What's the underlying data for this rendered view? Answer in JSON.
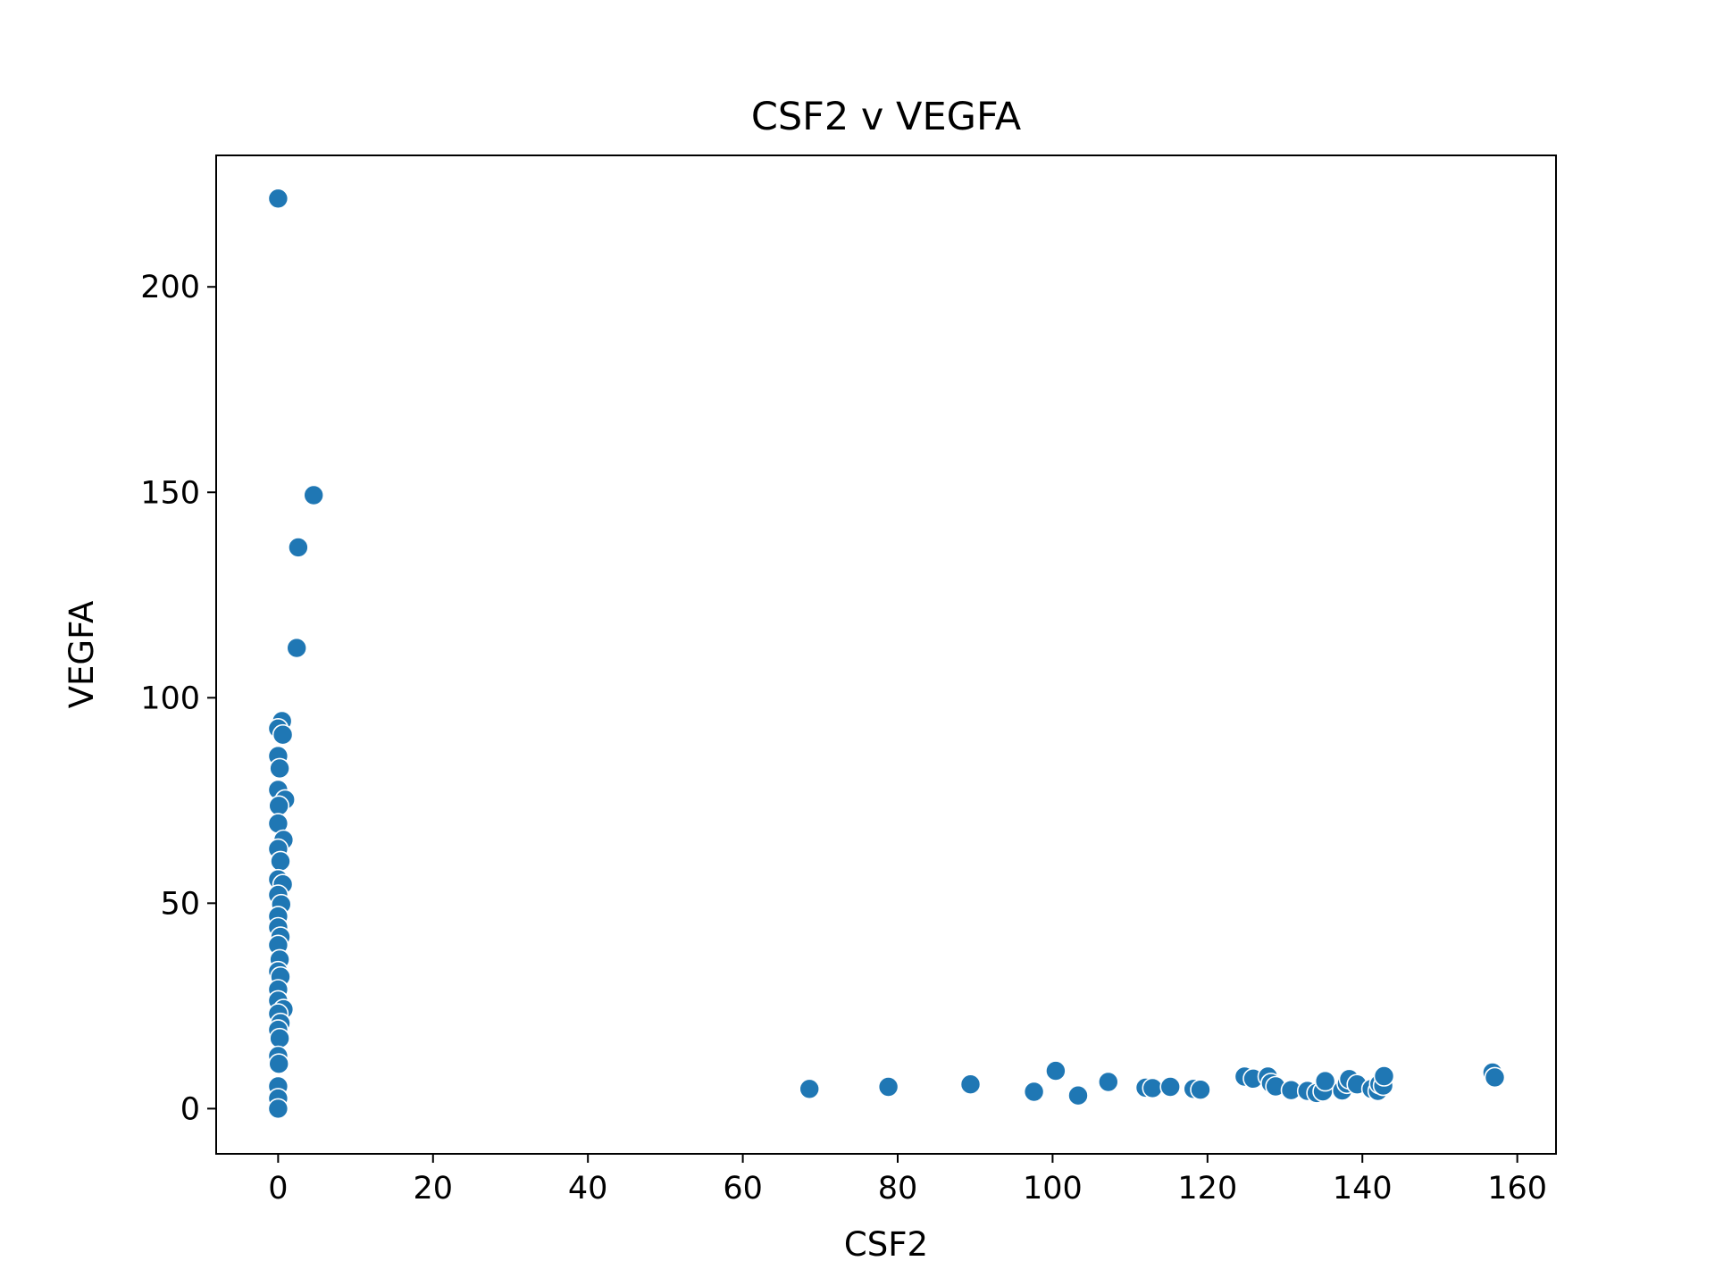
{
  "chart_data": {
    "type": "scatter",
    "title": "CSF2 v VEGFA",
    "xlabel": "CSF2",
    "ylabel": "VEGFA",
    "xlim": [
      -8,
      165
    ],
    "ylim": [
      -11,
      232
    ],
    "xticks": [
      0,
      20,
      40,
      60,
      80,
      100,
      120,
      140,
      160
    ],
    "yticks": [
      0,
      50,
      100,
      150,
      200
    ],
    "grid": false,
    "legend": "none",
    "marker_color": "#1f77b4",
    "marker_edge_color": "#ffffff",
    "points": [
      [
        0,
        221.5
      ],
      [
        4.6,
        149.3
      ],
      [
        2.6,
        136.6
      ],
      [
        2.4,
        112.1
      ],
      [
        0.5,
        94.3
      ],
      [
        0.0,
        92.5
      ],
      [
        0.6,
        91.0
      ],
      [
        0.0,
        85.8
      ],
      [
        0.2,
        82.8
      ],
      [
        0.0,
        77.6
      ],
      [
        0.9,
        75.2
      ],
      [
        0.1,
        73.7
      ],
      [
        0.0,
        69.4
      ],
      [
        0.7,
        65.4
      ],
      [
        0.0,
        63.2
      ],
      [
        0.3,
        60.2
      ],
      [
        0.0,
        55.8
      ],
      [
        0.6,
        54.6
      ],
      [
        0.0,
        52.0
      ],
      [
        0.4,
        49.7
      ],
      [
        0.0,
        46.8
      ],
      [
        0.0,
        44.1
      ],
      [
        0.3,
        41.8
      ],
      [
        0.0,
        39.8
      ],
      [
        0.2,
        36.3
      ],
      [
        0.0,
        33.4
      ],
      [
        0.3,
        32.1
      ],
      [
        0.0,
        29.0
      ],
      [
        0.0,
        26.3
      ],
      [
        0.7,
        24.2
      ],
      [
        0.0,
        23.1
      ],
      [
        0.3,
        20.8
      ],
      [
        0.0,
        19.2
      ],
      [
        0.2,
        17.1
      ],
      [
        0.0,
        12.8
      ],
      [
        0.1,
        10.9
      ],
      [
        0.0,
        5.4
      ],
      [
        0.0,
        2.5
      ],
      [
        0.0,
        0.0
      ],
      [
        68.6,
        4.8
      ],
      [
        78.8,
        5.3
      ],
      [
        89.4,
        5.9
      ],
      [
        97.6,
        4.1
      ],
      [
        100.4,
        9.2
      ],
      [
        103.3,
        3.2
      ],
      [
        107.2,
        6.5
      ],
      [
        112.0,
        5.1
      ],
      [
        112.9,
        5.0
      ],
      [
        115.2,
        5.3
      ],
      [
        118.2,
        4.8
      ],
      [
        119.1,
        4.6
      ],
      [
        124.8,
        7.8
      ],
      [
        125.9,
        7.3
      ],
      [
        127.8,
        7.8
      ],
      [
        128.2,
        6.2
      ],
      [
        128.8,
        5.4
      ],
      [
        130.8,
        4.5
      ],
      [
        132.9,
        4.3
      ],
      [
        134.1,
        3.8
      ],
      [
        134.9,
        4.2
      ],
      [
        135.2,
        6.7
      ],
      [
        137.4,
        4.4
      ],
      [
        138.0,
        6.1
      ],
      [
        138.3,
        7.2
      ],
      [
        139.3,
        5.9
      ],
      [
        141.2,
        4.8
      ],
      [
        142.0,
        4.3
      ],
      [
        142.2,
        6.0
      ],
      [
        142.7,
        5.6
      ],
      [
        142.8,
        7.9
      ],
      [
        156.8,
        8.8
      ],
      [
        157.1,
        7.6
      ]
    ]
  }
}
